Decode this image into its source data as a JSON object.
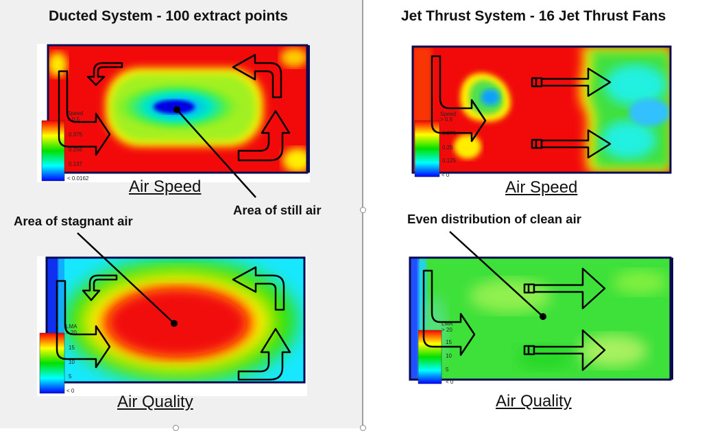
{
  "panels": {
    "ducted": {
      "title": "Ducted System - 100 extract points",
      "speed_caption": "Air Speed",
      "quality_caption": "Air Quality",
      "speed_scale": {
        "heading": "Speed",
        "top": "> 0.5",
        "labels": [
          "0.375",
          "0.256",
          "0.137"
        ],
        "bottom": "< 0.0162"
      },
      "quality_scale": {
        "heading": "LMA",
        "top": "> 20",
        "labels": [
          "15",
          "10",
          "5"
        ],
        "bottom": "< 0"
      }
    },
    "jet": {
      "title": "Jet Thrust System - 16 Jet Thrust Fans",
      "speed_caption": "Air Speed",
      "quality_caption": "Air Quality",
      "speed_scale": {
        "heading": "Speed",
        "top": "> 0.5",
        "labels": [
          "0.375",
          "0.25",
          "0.125"
        ],
        "bottom": "< 0"
      },
      "quality_scale": {
        "heading": "LMA",
        "top": "> 20",
        "labels": [
          "15",
          "10",
          "5"
        ],
        "bottom": "< 0"
      }
    }
  },
  "callouts": {
    "still_air": "Area of still air",
    "stagnant_air": "Area of stagnant air",
    "even_distribution": "Even distribution of clean air"
  },
  "colors": {
    "high": "#ff0000",
    "mid_high": "#ffff00",
    "mid": "#00e000",
    "mid_low": "#00ffff",
    "low": "#0000ff",
    "frame": "#0a0a50"
  }
}
